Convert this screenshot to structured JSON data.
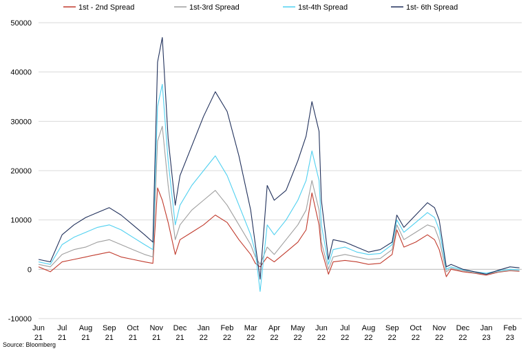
{
  "chart_data": {
    "type": "line",
    "title": "",
    "xlabel": "",
    "ylabel": "",
    "source": "Source: Bloomberg",
    "ylim": [
      -10000,
      50000
    ],
    "yticks": [
      -10000,
      0,
      10000,
      20000,
      30000,
      40000,
      50000
    ],
    "ytick_labels": [
      "-10000",
      "0",
      "10000",
      "20000",
      "30000",
      "40000",
      "50000"
    ],
    "xlim": [
      0,
      20.5
    ],
    "x_ticks": [
      {
        "pos": 0,
        "month": "Jun",
        "year": "21"
      },
      {
        "pos": 1,
        "month": "Jul",
        "year": "21"
      },
      {
        "pos": 2,
        "month": "Aug",
        "year": "21"
      },
      {
        "pos": 3,
        "month": "Sep",
        "year": "21"
      },
      {
        "pos": 4,
        "month": "Oct",
        "year": "21"
      },
      {
        "pos": 5,
        "month": "Nov",
        "year": "21"
      },
      {
        "pos": 6,
        "month": "Dec",
        "year": "21"
      },
      {
        "pos": 7,
        "month": "Jan",
        "year": "22"
      },
      {
        "pos": 8,
        "month": "Feb",
        "year": "22"
      },
      {
        "pos": 9,
        "month": "Mar",
        "year": "22"
      },
      {
        "pos": 10,
        "month": "Apr",
        "year": "22"
      },
      {
        "pos": 11,
        "month": "May",
        "year": "22"
      },
      {
        "pos": 12,
        "month": "Jun",
        "year": "22"
      },
      {
        "pos": 13,
        "month": "Jul",
        "year": "22"
      },
      {
        "pos": 14,
        "month": "Aug",
        "year": "22"
      },
      {
        "pos": 15,
        "month": "Sep",
        "year": "22"
      },
      {
        "pos": 16,
        "month": "Oct",
        "year": "22"
      },
      {
        "pos": 17,
        "month": "Nov",
        "year": "22"
      },
      {
        "pos": 18,
        "month": "Dec",
        "year": "22"
      },
      {
        "pos": 19,
        "month": "Jan",
        "year": "23"
      },
      {
        "pos": 20,
        "month": "Feb",
        "year": "23"
      }
    ],
    "x": [
      0,
      0.5,
      1,
      1.5,
      2,
      2.5,
      3,
      3.5,
      4,
      4.5,
      4.85,
      5.05,
      5.25,
      5.5,
      5.8,
      6,
      6.5,
      7,
      7.5,
      8,
      8.5,
      9,
      9.2,
      9.4,
      9.7,
      10,
      10.5,
      11,
      11.35,
      11.6,
      11.9,
      12,
      12.3,
      12.5,
      13,
      13.5,
      14,
      14.5,
      15,
      15.2,
      15.5,
      16,
      16.5,
      16.8,
      17,
      17.3,
      17.5,
      18,
      18.5,
      19,
      19.5,
      20,
      20.4
    ],
    "series": [
      {
        "name": "1st - 2nd Spread",
        "color": "#c0392b",
        "values": [
          500,
          -500,
          1500,
          2000,
          2500,
          3000,
          3500,
          2500,
          2000,
          1500,
          1200,
          16500,
          14000,
          9500,
          3000,
          6000,
          7500,
          9000,
          11000,
          9500,
          6000,
          3000,
          1200,
          500,
          2500,
          1500,
          3500,
          5500,
          8000,
          15500,
          9000,
          4000,
          -1000,
          1500,
          1800,
          1500,
          1000,
          1200,
          3000,
          8000,
          4500,
          5500,
          7000,
          6000,
          4000,
          -1500,
          0,
          -500,
          -800,
          -1200,
          -600,
          -300,
          -400
        ]
      },
      {
        "name": "1st-3rd Spread",
        "color": "#9e9e9e",
        "values": [
          1000,
          500,
          3000,
          4000,
          4500,
          5500,
          6000,
          5000,
          4000,
          3000,
          2500,
          26000,
          29000,
          17000,
          6000,
          9000,
          12000,
          14000,
          16000,
          13000,
          9000,
          5000,
          2500,
          1000,
          4500,
          3000,
          6000,
          9000,
          12000,
          18000,
          12000,
          5500,
          0,
          2500,
          3000,
          2500,
          2000,
          2200,
          4000,
          9000,
          6000,
          7500,
          9000,
          8500,
          6000,
          -500,
          200,
          -300,
          -700,
          -1000,
          -500,
          -200,
          -300
        ]
      },
      {
        "name": "1st-4th Spread",
        "color": "#4fd0f0",
        "values": [
          1500,
          1000,
          5000,
          6500,
          7500,
          8500,
          9000,
          8000,
          6500,
          5000,
          4000,
          33000,
          37500,
          22000,
          9000,
          13000,
          17000,
          20000,
          23000,
          19000,
          13000,
          7000,
          3500,
          -4500,
          9000,
          7000,
          10000,
          14000,
          18000,
          24000,
          18000,
          9000,
          1000,
          4000,
          4500,
          3500,
          3000,
          3200,
          5000,
          10000,
          7500,
          9500,
          11500,
          10500,
          8000,
          0,
          500,
          -100,
          -500,
          -800,
          -300,
          0,
          -100
        ]
      },
      {
        "name": "1st- 6th Spread",
        "color": "#1f2f5a",
        "values": [
          2000,
          1500,
          7000,
          9000,
          10500,
          11500,
          12500,
          11000,
          9000,
          7000,
          5500,
          42000,
          47000,
          26500,
          13000,
          19000,
          25000,
          31000,
          36000,
          32000,
          23000,
          12000,
          5000,
          -2000,
          17000,
          14000,
          16000,
          22000,
          27000,
          34000,
          28000,
          14000,
          2000,
          6000,
          5500,
          4500,
          3500,
          4000,
          5500,
          11000,
          8500,
          11000,
          13500,
          12500,
          10000,
          500,
          1000,
          0,
          -500,
          -1000,
          -200,
          500,
          300
        ]
      }
    ]
  }
}
